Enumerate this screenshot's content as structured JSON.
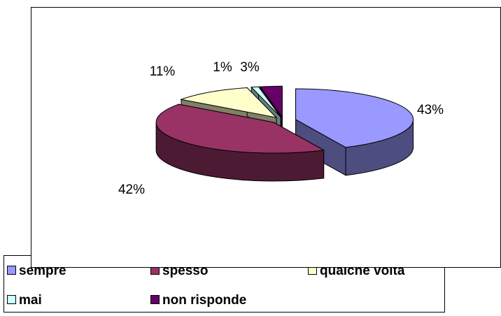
{
  "chart_data": {
    "type": "pie3d",
    "categories": [
      "sempre",
      "spesso",
      "qualche volta",
      "mai",
      "non risponde"
    ],
    "values": [
      43,
      42,
      11,
      1,
      3
    ],
    "value_labels": [
      "43%",
      "42%",
      "11%",
      "1%",
      "3%"
    ],
    "colors": [
      "#9999ff",
      "#993366",
      "#ffffcc",
      "#ccffff",
      "#660066"
    ],
    "legend": "bottom"
  }
}
